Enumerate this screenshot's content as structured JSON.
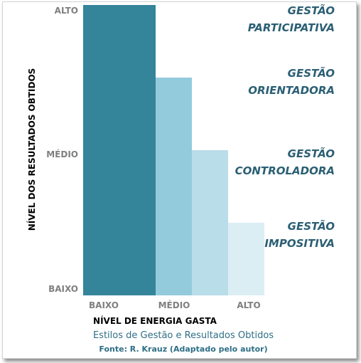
{
  "chart_data": {
    "type": "bar",
    "title": "",
    "xlabel": "NÍVEL DE ENERGIA GASTA",
    "ylabel": "NÍVEL DOS RESULTADOS OBTIDOS",
    "x_ticks": [
      "BAIXO",
      "MÉDIO",
      "ALTO"
    ],
    "y_ticks": [
      "BAIXO",
      "MÉDIO",
      "ALTO"
    ],
    "ylim": [
      0,
      4
    ],
    "categories": [
      "GESTÃO PARTICIPATIVA",
      "GESTÃO ORIENTADORA",
      "GESTÃO CONTROLADORA",
      "GESTÃO IMPOSITIVA"
    ],
    "values": [
      4,
      3,
      2,
      1
    ],
    "colors": [
      "#34849a",
      "#93cbdd",
      "#b9dde9",
      "#dbeef4"
    ],
    "category_labels": [
      [
        "GESTÃO",
        "PARTICIPATIVA"
      ],
      [
        "GESTÃO",
        "ORIENTADORA"
      ],
      [
        "GESTÃO",
        "CONTROLADORA"
      ],
      [
        "GESTÃO",
        "IMPOSITIVA"
      ]
    ],
    "grid": false,
    "legend": "none"
  },
  "caption": "Estilos de Gestão e Resultados Obtidos",
  "source": "Fonte: R. Krauz (Adaptado pelo autor)"
}
